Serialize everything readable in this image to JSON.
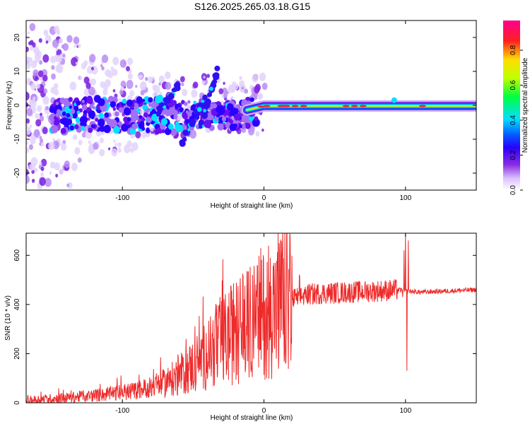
{
  "title": "S126.2025.265.03.18.G15",
  "chart_data": [
    {
      "type": "heatmap",
      "name": "spectrogram",
      "xlabel": "Height of straight line (km)",
      "ylabel": "Frequency (Hz)",
      "xlim": [
        -168,
        150
      ],
      "ylim": [
        -25,
        25
      ],
      "xticks": [
        -100,
        0,
        100
      ],
      "yticks": [
        -20,
        -10,
        0,
        10,
        20
      ],
      "colorbar": {
        "label": "Normalized spectral amplitude",
        "range": [
          0,
          0.97
        ],
        "ticks": [
          "0.0",
          "0.2",
          "0.4",
          "0.6",
          "0.8"
        ],
        "colors": [
          "#ffffff",
          "#d9c0ff",
          "#8a2be2",
          "#2a00ff",
          "#0060ff",
          "#00e0ff",
          "#00ff40",
          "#bfff00",
          "#ffdd00",
          "#ff2020",
          "#ff0090"
        ]
      },
      "line_center_hz": [
        [
          -20,
          -2.0
        ],
        [
          -10,
          -1.0
        ],
        [
          0,
          0.0
        ],
        [
          20,
          0.0
        ],
        [
          80,
          0.0
        ],
        [
          150,
          0.0
        ]
      ]
    },
    {
      "type": "line",
      "name": "snr",
      "xlabel": "Height of straight line (km)",
      "ylabel": "SNR (10 * v/v)",
      "xlim": [
        -168,
        150
      ],
      "ylim": [
        0,
        690
      ],
      "xticks": [
        -100,
        0,
        100
      ],
      "yticks": [
        0,
        200,
        400,
        600
      ],
      "color": "#ee2a2a",
      "envelope": [
        [
          -168,
          10
        ],
        [
          -140,
          20
        ],
        [
          -110,
          35
        ],
        [
          -90,
          50
        ],
        [
          -70,
          80
        ],
        [
          -60,
          110
        ],
        [
          -50,
          150
        ],
        [
          -40,
          200
        ],
        [
          -30,
          250
        ],
        [
          -20,
          290
        ],
        [
          -10,
          320
        ],
        [
          0,
          360
        ],
        [
          10,
          390
        ],
        [
          20,
          420
        ],
        [
          30,
          440
        ],
        [
          40,
          445
        ],
        [
          60,
          450
        ],
        [
          80,
          455
        ],
        [
          95,
          460
        ],
        [
          100,
          455
        ],
        [
          110,
          450
        ],
        [
          130,
          455
        ],
        [
          150,
          460
        ]
      ],
      "spikes": [
        [
          -15,
          525
        ],
        [
          -8,
          520
        ],
        [
          5,
          475
        ],
        [
          -31,
          430
        ],
        [
          -22,
          420
        ],
        [
          -55,
          260
        ],
        [
          100,
          690
        ],
        [
          99,
          620
        ],
        [
          101,
          130
        ],
        [
          98,
          430
        ],
        [
          102,
          660
        ]
      ]
    }
  ]
}
